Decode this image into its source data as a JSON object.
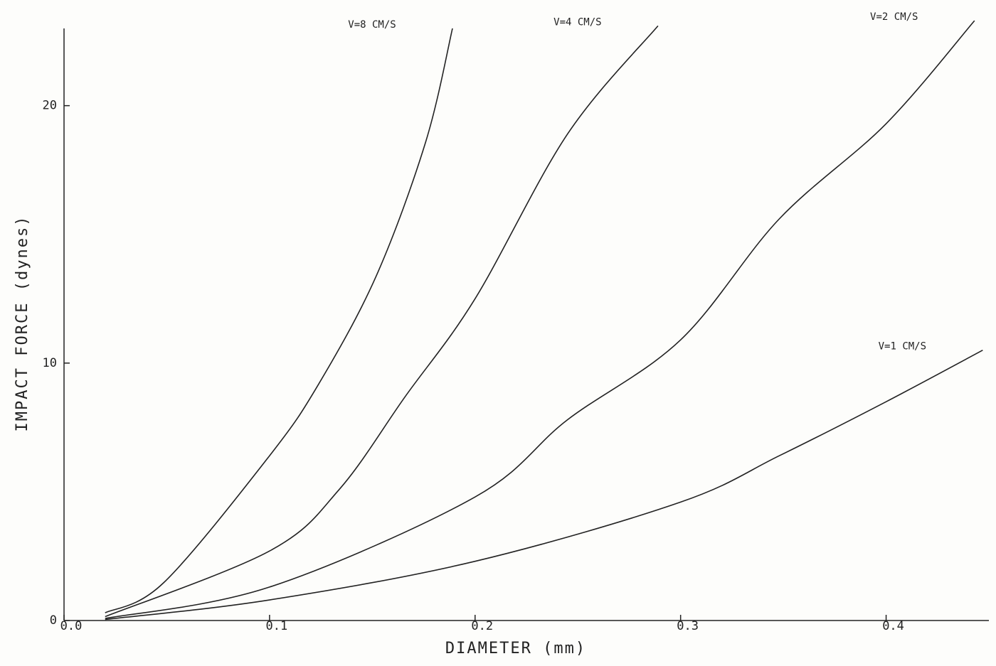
{
  "chart_data": {
    "type": "line",
    "xlabel": "DIAMETER (mm)",
    "ylabel": "IMPACT FORCE (dynes)",
    "xlim": [
      0,
      0.45
    ],
    "ylim": [
      0,
      23
    ],
    "xticks": [
      {
        "value": 0,
        "label": "0.0"
      },
      0.1,
      0.2,
      0.3,
      0.4
    ],
    "yticks": [
      0,
      10,
      20
    ],
    "grid": false,
    "series": [
      {
        "name": "V=8 CM/S",
        "color": "#222222",
        "x": [
          0.02,
          0.0485,
          0.1,
          0.124,
          0.152,
          0.176,
          0.189
        ],
        "values": [
          0.3,
          1.47,
          6.4,
          9.2,
          13.4,
          18.6,
          23
        ]
      },
      {
        "name": "V=4 CM/S",
        "color": "#222222",
        "x": [
          0.02,
          0.1,
          0.134,
          0.166,
          0.2,
          0.245,
          0.289
        ],
        "values": [
          0.15,
          2.7,
          5.1,
          8.7,
          12.5,
          18.9,
          23.1
        ]
      },
      {
        "name": "V=2 CM/S",
        "color": "#222222",
        "x": [
          0.02,
          0.1,
          0.2,
          0.245,
          0.3,
          0.348,
          0.4,
          0.443
        ],
        "values": [
          0.08,
          1.3,
          4.8,
          7.8,
          10.9,
          15.6,
          19.3,
          23.3
        ]
      },
      {
        "name": "V=1 CM/S",
        "color": "#222222",
        "x": [
          0.02,
          0.1,
          0.2,
          0.3,
          0.348,
          0.4,
          0.447
        ],
        "values": [
          0.04,
          0.8,
          2.3,
          4.6,
          6.4,
          8.5,
          10.5
        ]
      }
    ]
  }
}
